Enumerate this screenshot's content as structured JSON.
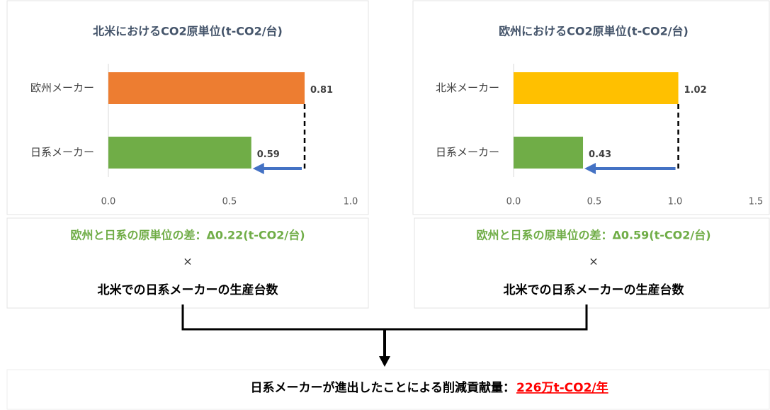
{
  "chart_data": [
    {
      "type": "barh",
      "title": "北米におけるCO2原単位(t-CO2/台)",
      "categories": [
        "欧州メーカー",
        "日系メーカー"
      ],
      "values": [
        0.81,
        0.59
      ],
      "colors": [
        "#ED7D31",
        "#70AD47"
      ],
      "xlim": [
        0,
        1.0
      ],
      "xticks": [
        {
          "value": 0,
          "label": "0.0"
        },
        0.5,
        {
          "value": 1.0,
          "label": "1.0"
        }
      ]
    },
    {
      "type": "barh",
      "title": "欧州におけるCO2原単位(t-CO2/台)",
      "categories": [
        "北米メーカー",
        "日系メーカー"
      ],
      "values": [
        1.02,
        0.43
      ],
      "colors": [
        "#FFC000",
        "#70AD47"
      ],
      "xlim": [
        0,
        1.5
      ],
      "xticks": [
        {
          "value": 0,
          "label": "0.0"
        },
        0.5,
        {
          "value": 1.0,
          "label": "1.0"
        },
        1.5
      ]
    }
  ],
  "boxes": [
    {
      "difference": "欧州と日系の原単位の差：Δ0.22(t-CO2/台)",
      "times": "×",
      "basis": "北米での日系メーカーの生産台数"
    },
    {
      "difference": "欧州と日系の原単位の差：Δ0.59(t-CO2/台)",
      "times": "×",
      "basis": "北米での日系メーカーの生産台数"
    }
  ],
  "result": {
    "label": "日系メーカーが進出したことによる削減貢献量：",
    "value": "226万t-CO2/年"
  }
}
